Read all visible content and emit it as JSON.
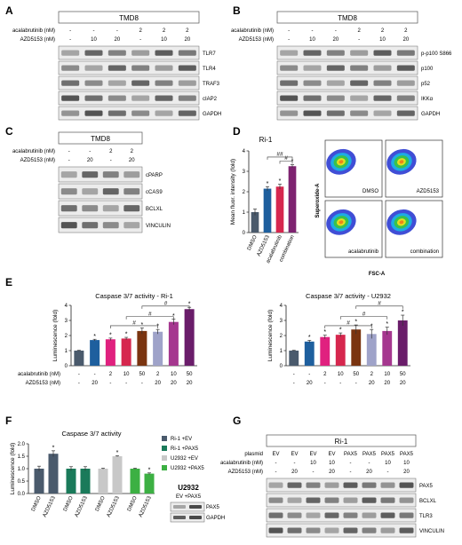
{
  "panels": {
    "A": {
      "letter": "A",
      "cell_line": "TMD8",
      "rows": [
        {
          "label": "acalabrutinib (nM)",
          "values": [
            "-",
            "-",
            "-",
            "2",
            "2",
            "2"
          ]
        },
        {
          "label": "AZD5153 (nM)",
          "values": [
            "-",
            "10",
            "20",
            "-",
            "10",
            "20"
          ]
        }
      ],
      "blots": [
        "TLR7",
        "TLR4",
        "TRAF3",
        "cIAP2",
        "GAPDH"
      ]
    },
    "B": {
      "letter": "B",
      "cell_line": "TMD8",
      "rows": [
        {
          "label": "acalabrutinib (nM)",
          "values": [
            "-",
            "-",
            "-",
            "2",
            "2",
            "2"
          ]
        },
        {
          "label": "AZD5153 (nM)",
          "values": [
            "-",
            "10",
            "20",
            "-",
            "10",
            "20"
          ]
        }
      ],
      "blots": [
        "p-p100 S866",
        "p100",
        "p52",
        "IKKα",
        "GAPDH"
      ]
    },
    "C": {
      "letter": "C",
      "cell_line": "TMD8",
      "rows": [
        {
          "label": "acalabrutinib (nM)",
          "values": [
            "-",
            "-",
            "2",
            "2"
          ]
        },
        {
          "label": "AZD5153 (nM)",
          "values": [
            "-",
            "20",
            "-",
            "20"
          ]
        }
      ],
      "blots": [
        "cPARP",
        "cCAS9",
        "BCLXL",
        "VINCULIN"
      ]
    },
    "D": {
      "letter": "D",
      "title": "Ri-1",
      "sig_stars": "*",
      "brackets": [
        "##",
        "#"
      ],
      "flow_labels": [
        "DMSO",
        "AZD5153",
        "acalabrutinib",
        "combination"
      ],
      "flow_xlabel": "FSC-A",
      "flow_ylabel": "Superoxide-A"
    },
    "E": {
      "letter": "E",
      "rows": [
        {
          "label": "acalabrutinib (nM)",
          "values": [
            "-",
            "-",
            "2",
            "10",
            "50",
            "2",
            "10",
            "50"
          ]
        },
        {
          "label": "AZD5153 (nM)",
          "values": [
            "-",
            "20",
            "-",
            "-",
            "-",
            "20",
            "20",
            "20"
          ]
        }
      ],
      "brackets_left": [
        "#",
        "#",
        "#"
      ],
      "brackets_right": [
        "#",
        "#",
        "#"
      ]
    },
    "F": {
      "letter": "F",
      "inset_title": "U2932",
      "inset_lanes": "EV +PAX5",
      "inset_blots": [
        "PAX5",
        "GAPDH"
      ]
    },
    "G": {
      "letter": "G",
      "cell_line": "Ri-1",
      "rows": [
        {
          "label": "plasmid",
          "values": [
            "EV",
            "EV",
            "EV",
            "EV",
            "PAX5",
            "PAX5",
            "PAX5",
            "PAX5"
          ]
        },
        {
          "label": "acalabrutinib (nM)",
          "values": [
            "-",
            "-",
            "10",
            "10",
            "-",
            "-",
            "10",
            "10"
          ]
        },
        {
          "label": "AZD5153 (nM)",
          "values": [
            "-",
            "20",
            "-",
            "20",
            "-",
            "20",
            "-",
            "20"
          ]
        }
      ],
      "blots": [
        "PAX5",
        "BCLXL",
        "TLR3",
        "VINCULIN"
      ]
    }
  },
  "chart_data": [
    {
      "panel": "D",
      "type": "bar",
      "title": "Ri-1",
      "categories": [
        "DMSO",
        "AZD5153",
        "acalabrutinib",
        "combination"
      ],
      "values": [
        1.0,
        2.15,
        2.25,
        3.25
      ],
      "errors": [
        0.15,
        0.1,
        0.12,
        0.07
      ],
      "significance": [
        "",
        "*",
        "*",
        "*"
      ],
      "colors": [
        "#4a5a6c",
        "#1e5f9e",
        "#d6274e",
        "#7e2370"
      ],
      "ylabel": "Mean fluor. intensity (fold)",
      "yticks": [
        0,
        1,
        2,
        3,
        4
      ],
      "ylim": [
        0,
        4
      ]
    },
    {
      "panel": "E-left",
      "type": "bar",
      "title": "Caspase 3/7 activity - Ri-1",
      "values": [
        1.0,
        1.7,
        1.75,
        1.8,
        2.3,
        2.25,
        2.9,
        3.75
      ],
      "errors": [
        0.02,
        0.05,
        0.08,
        0.08,
        0.2,
        0.15,
        0.18,
        0.12
      ],
      "significance": [
        "",
        "*",
        "*",
        "*",
        "*",
        "*",
        "*",
        "*"
      ],
      "colors": [
        "#4a5a6c",
        "#1e5f9e",
        "#e0217f",
        "#d6274e",
        "#7a3410",
        "#9fa3c9",
        "#a5378f",
        "#6a1d6a"
      ],
      "ylabel": "Luminescence (fold)",
      "yticks": [
        0,
        1,
        2,
        3,
        4
      ],
      "ylim": [
        0,
        4
      ]
    },
    {
      "panel": "E-right",
      "type": "bar",
      "title": "Caspase 3/7 activity - U2932",
      "values": [
        1.0,
        1.6,
        1.9,
        2.05,
        2.4,
        2.1,
        2.3,
        3.0
      ],
      "errors": [
        0.02,
        0.08,
        0.12,
        0.12,
        0.3,
        0.3,
        0.25,
        0.35
      ],
      "significance": [
        "",
        "*",
        "*",
        "*",
        "*",
        "*",
        "*",
        "*"
      ],
      "colors": [
        "#4a5a6c",
        "#1e5f9e",
        "#e0217f",
        "#d6274e",
        "#7a3410",
        "#9fa3c9",
        "#a5378f",
        "#6a1d6a"
      ],
      "ylabel": "Luminescence (fold)",
      "yticks": [
        0,
        1,
        2,
        3,
        4
      ],
      "ylim": [
        0,
        4
      ]
    },
    {
      "panel": "F",
      "type": "bar",
      "title": "Caspase 3/7 activity",
      "categories": [
        "DMSO",
        "AZD5153",
        "DMSO",
        "AZD5153",
        "DMSO",
        "AZD5153",
        "DMSO",
        "AZD5153"
      ],
      "values": [
        1.0,
        1.6,
        1.0,
        1.0,
        1.0,
        1.5,
        1.0,
        0.8
      ],
      "errors": [
        0.1,
        0.12,
        0.08,
        0.08,
        0.02,
        0.02,
        0.02,
        0.03
      ],
      "significance": [
        "",
        "*",
        "",
        "",
        "",
        "*",
        "",
        "*"
      ],
      "colors": [
        "#4a5a6c",
        "#4a5a6c",
        "#1a7a5a",
        "#1a7a5a",
        "#c8c8c8",
        "#c8c8c8",
        "#3cb043",
        "#3cb043"
      ],
      "ylabel": "Luminescence (fold)",
      "yticks": [
        0.0,
        0.5,
        1.0,
        1.5,
        2.0
      ],
      "ylim": [
        0,
        2
      ],
      "legend": [
        {
          "name": "Ri-1 +EV",
          "color": "#4a5a6c"
        },
        {
          "name": "Ri-1 +PAX5",
          "color": "#1a7a5a"
        },
        {
          "name": "U2932 +EV",
          "color": "#c8c8c8"
        },
        {
          "name": "U2932 +PAX5",
          "color": "#3cb043"
        }
      ]
    }
  ]
}
